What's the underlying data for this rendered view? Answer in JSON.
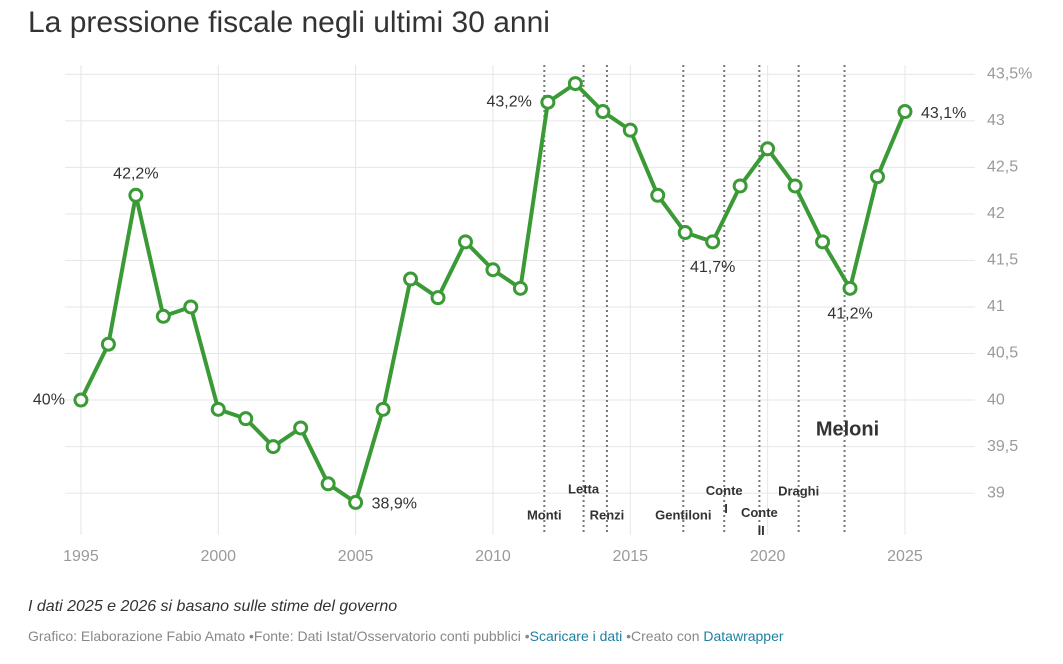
{
  "chart_data": {
    "type": "line",
    "title": "La pressione fiscale negli ultimi 30 anni",
    "notes": "I dati 2025 e 2026 si basano sulle stime del governo",
    "byline": "Grafico: Elaborazione Fabio Amato",
    "source": "Fonte: Dati Istat/Osservatorio conti pubblici",
    "download": "Scaricare i dati",
    "created_with": "Creato con",
    "tool": "Datawrapper",
    "x": [
      1995,
      1996,
      1997,
      1998,
      1999,
      2000,
      2001,
      2002,
      2003,
      2004,
      2005,
      2006,
      2007,
      2008,
      2009,
      2010,
      2011,
      2012,
      2013,
      2014,
      2015,
      2016,
      2017,
      2018,
      2019,
      2020,
      2021,
      2022,
      2023,
      2024,
      2025
    ],
    "series": [
      {
        "name": "Pressione fiscale",
        "color": "#3a9a36",
        "values": [
          40.0,
          40.6,
          42.2,
          40.9,
          41.0,
          39.9,
          39.8,
          39.5,
          39.7,
          39.1,
          38.9,
          39.9,
          41.3,
          41.1,
          41.7,
          41.4,
          41.2,
          43.2,
          43.4,
          43.1,
          42.9,
          42.2,
          41.8,
          41.7,
          42.3,
          42.7,
          42.3,
          41.7,
          41.2,
          42.4,
          43.1
        ],
        "value_labels": [
          "40%",
          null,
          "42,2%",
          null,
          null,
          null,
          null,
          null,
          null,
          null,
          "38,9%",
          null,
          null,
          null,
          null,
          null,
          null,
          "43,2%",
          null,
          null,
          null,
          null,
          null,
          "41,7%",
          null,
          null,
          null,
          null,
          "41,2%",
          null,
          "43,1%"
        ]
      }
    ],
    "periods": [
      {
        "label": "Monti",
        "start": 2011.87
      },
      {
        "label": "Letta",
        "start": 2013.3
      },
      {
        "label": "Renzi",
        "start": 2014.15
      },
      {
        "label": "Gentiloni",
        "start": 2016.93
      },
      {
        "label": "Conte I",
        "start": 2018.42
      },
      {
        "label": "Conte II",
        "start": 2019.7
      },
      {
        "label": "Draghi",
        "start": 2021.13
      },
      {
        "label": "Meloni",
        "start": 2022.8
      }
    ],
    "xlim": [
      1994.42,
      2027.55
    ],
    "xticks": [
      1995,
      2000,
      2005,
      2010,
      2015,
      2020,
      2025
    ],
    "ylim": [
      38.55,
      43.6
    ],
    "yticks": [
      39,
      {
        "value": 39.5,
        "label": "39,5"
      },
      40,
      {
        "value": 40.5,
        "label": "40,5"
      },
      41,
      {
        "value": 41.5,
        "label": "41,5"
      },
      42,
      {
        "value": 42.5,
        "label": "42,5"
      },
      43,
      {
        "value": 43.5,
        "label": "43,5%"
      }
    ],
    "grid": true
  }
}
